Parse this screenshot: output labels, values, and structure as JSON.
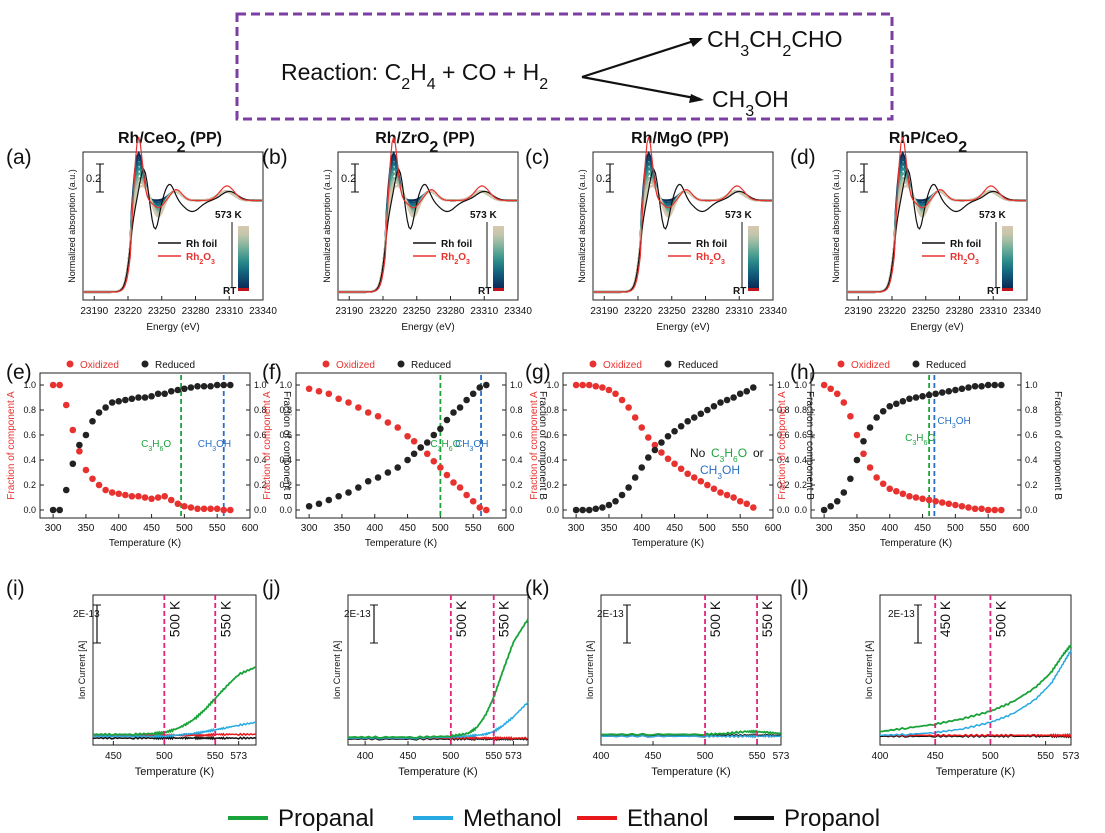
{
  "reaction": {
    "label": "Reaction: ",
    "reactants": [
      "C2H4",
      "CO",
      "H2"
    ],
    "product_1": "CH3CH2CHO",
    "product_2": "CH3OH"
  },
  "colors": {
    "oxidized": "#e8322f",
    "reduced": "#222222",
    "propanal": "#1aa33a",
    "methanol": "#27a9e1",
    "ethanol": "#e8191b",
    "propanol": "#111111",
    "vline_xas": "#1aa33a",
    "vline_meoh": "#2b6fc4",
    "vline_ms": "#e0247a",
    "rh_foil": "#111111",
    "rh2o3": "#e8322f",
    "frame_dash": "#7a3fa0"
  },
  "legend_bottom": [
    "Propanal",
    "Methanol",
    "Ethanol",
    "Propanol"
  ],
  "chart_data": [
    {
      "panel": "(a)",
      "type": "line",
      "title": "Rh/CeO2 (PP)",
      "xlabel": "Energy (eV)",
      "ylabel": "Normalized absorption (a.u.)",
      "xticks": [
        "23190",
        "23220",
        "23250",
        "23280",
        "23310",
        "23340"
      ],
      "xlim": [
        23180,
        23340
      ],
      "scale_bar": "0.2",
      "legend": [
        "Rh foil",
        "Rh2O3"
      ],
      "colorbar_top": "573 K",
      "colorbar_bottom": "RT"
    },
    {
      "panel": "(b)",
      "type": "line",
      "title": "Rh/ZrO2 (PP)",
      "xlabel": "Energy (eV)",
      "ylabel": "Normalized absorption (a.u.)",
      "xticks": [
        "23190",
        "23220",
        "23250",
        "23280",
        "23310",
        "23340"
      ],
      "xlim": [
        23180,
        23340
      ],
      "scale_bar": "0.2",
      "legend": [
        "Rh foil",
        "Rh2O3"
      ],
      "colorbar_top": "573 K",
      "colorbar_bottom": "RT"
    },
    {
      "panel": "(c)",
      "type": "line",
      "title": "Rh/MgO (PP)",
      "xlabel": "Energy (eV)",
      "ylabel": "Normalized absorption (a.u.)",
      "xticks": [
        "23190",
        "23220",
        "23250",
        "23280",
        "23310",
        "23340"
      ],
      "xlim": [
        23180,
        23340
      ],
      "scale_bar": "0.2",
      "legend": [
        "Rh foil",
        "Rh2O3"
      ],
      "colorbar_top": "573 K",
      "colorbar_bottom": "RT"
    },
    {
      "panel": "(d)",
      "type": "line",
      "title": "RhP/CeO2",
      "xlabel": "Energy (eV)",
      "ylabel": "Normalized absorption (a.u.)",
      "xticks": [
        "23190",
        "23220",
        "23250",
        "23280",
        "23310",
        "23340"
      ],
      "xlim": [
        23180,
        23340
      ],
      "scale_bar": "0.2",
      "legend": [
        "Rh foil",
        "Rh2O3"
      ],
      "colorbar_top": "573 K",
      "colorbar_bottom": "RT"
    },
    {
      "panel": "(e)",
      "type": "scatter",
      "xlabel": "Temperature (K)",
      "ylabel_left": "Fraction of component A",
      "ylabel_right": "Fraction of component B",
      "xlim": [
        280,
        600
      ],
      "ylim": [
        0,
        1.0
      ],
      "xticks": [
        300,
        350,
        400,
        450,
        500,
        550,
        600
      ],
      "yticks": [
        0.0,
        0.2,
        0.4,
        0.6,
        0.8,
        1.0
      ],
      "legend": [
        "Oxidized",
        "Reduced"
      ],
      "x": [
        300,
        310,
        320,
        330,
        340,
        350,
        360,
        370,
        380,
        390,
        400,
        410,
        420,
        430,
        440,
        450,
        460,
        470,
        480,
        490,
        500,
        510,
        520,
        530,
        540,
        550,
        560,
        570
      ],
      "series": [
        {
          "name": "Oxidized",
          "values": [
            1.0,
            1.0,
            0.84,
            0.64,
            0.47,
            0.32,
            0.25,
            0.2,
            0.16,
            0.14,
            0.13,
            0.12,
            0.11,
            0.11,
            0.1,
            0.09,
            0.1,
            0.11,
            0.08,
            0.05,
            0.03,
            0.02,
            0.01,
            0.01,
            0.01,
            0.01,
            0.0,
            0.0
          ]
        },
        {
          "name": "Reduced",
          "values": [
            0.0,
            0.0,
            0.16,
            0.37,
            0.52,
            0.6,
            0.71,
            0.78,
            0.82,
            0.86,
            0.87,
            0.88,
            0.89,
            0.9,
            0.9,
            0.91,
            0.93,
            0.93,
            0.95,
            0.96,
            0.97,
            0.98,
            0.99,
            0.99,
            0.99,
            1.0,
            1.0,
            1.0
          ]
        }
      ],
      "vlines": [
        {
          "x": 495,
          "label": "C3H6O",
          "kind": "xas"
        },
        {
          "x": 560,
          "label": "CH3OH",
          "kind": "meoh"
        }
      ]
    },
    {
      "panel": "(f)",
      "type": "scatter",
      "xlabel": "Temperature (K)",
      "ylabel_left": "Fraction of component A",
      "ylabel_right": "Fraction of component B",
      "xlim": [
        280,
        600
      ],
      "ylim": [
        0,
        1.0
      ],
      "xticks": [
        300,
        350,
        400,
        450,
        500,
        550,
        600
      ],
      "yticks": [
        0.0,
        0.2,
        0.4,
        0.6,
        0.8,
        1.0
      ],
      "legend": [
        "Oxidized",
        "Reduced"
      ],
      "x": [
        300,
        315,
        330,
        345,
        360,
        375,
        390,
        405,
        420,
        435,
        450,
        460,
        470,
        480,
        490,
        500,
        510,
        520,
        530,
        540,
        550,
        560,
        570
      ],
      "series": [
        {
          "name": "Oxidized",
          "values": [
            0.97,
            0.95,
            0.93,
            0.89,
            0.86,
            0.82,
            0.78,
            0.75,
            0.7,
            0.66,
            0.59,
            0.55,
            0.5,
            0.45,
            0.39,
            0.34,
            0.28,
            0.22,
            0.18,
            0.12,
            0.07,
            0.02,
            0.0
          ]
        },
        {
          "name": "Reduced",
          "values": [
            0.03,
            0.05,
            0.08,
            0.11,
            0.14,
            0.18,
            0.23,
            0.26,
            0.3,
            0.34,
            0.4,
            0.45,
            0.5,
            0.54,
            0.6,
            0.65,
            0.72,
            0.78,
            0.82,
            0.88,
            0.93,
            0.98,
            1.0
          ]
        }
      ],
      "vlines": [
        {
          "x": 500,
          "label": "C3H6O",
          "kind": "xas"
        },
        {
          "x": 562,
          "label": "CH3OH",
          "kind": "meoh"
        }
      ]
    },
    {
      "panel": "(g)",
      "type": "scatter",
      "xlabel": "Temperature (K)",
      "ylabel_left": "Fraction of component A",
      "ylabel_right": "Fraction of component B",
      "xlim": [
        280,
        600
      ],
      "ylim": [
        0,
        1.0
      ],
      "xticks": [
        300,
        350,
        400,
        450,
        500,
        550,
        600
      ],
      "yticks": [
        0.0,
        0.2,
        0.4,
        0.6,
        0.8,
        1.0
      ],
      "legend": [
        "Oxidized",
        "Reduced"
      ],
      "x": [
        300,
        310,
        320,
        330,
        340,
        350,
        360,
        370,
        380,
        390,
        400,
        410,
        420,
        430,
        440,
        450,
        460,
        470,
        480,
        490,
        500,
        510,
        520,
        530,
        540,
        550,
        560,
        570
      ],
      "series": [
        {
          "name": "Oxidized",
          "values": [
            1.0,
            1.0,
            1.0,
            0.99,
            0.98,
            0.96,
            0.93,
            0.88,
            0.82,
            0.74,
            0.66,
            0.58,
            0.52,
            0.46,
            0.41,
            0.37,
            0.33,
            0.29,
            0.26,
            0.23,
            0.2,
            0.17,
            0.14,
            0.12,
            0.1,
            0.07,
            0.05,
            0.02
          ]
        },
        {
          "name": "Reduced",
          "values": [
            0.0,
            0.0,
            0.0,
            0.01,
            0.02,
            0.04,
            0.07,
            0.12,
            0.18,
            0.26,
            0.34,
            0.42,
            0.48,
            0.54,
            0.59,
            0.63,
            0.67,
            0.71,
            0.74,
            0.77,
            0.8,
            0.83,
            0.86,
            0.88,
            0.9,
            0.93,
            0.95,
            0.98
          ]
        }
      ],
      "annotation": [
        "No ",
        "C3H6O",
        " or",
        "CH3OH"
      ]
    },
    {
      "panel": "(h)",
      "type": "scatter",
      "xlabel": "Temperature (K)",
      "ylabel_left": "Fraction of component A",
      "ylabel_right": "Fraction of component B",
      "xlim": [
        280,
        600
      ],
      "ylim": [
        0,
        1.0
      ],
      "xticks": [
        300,
        350,
        400,
        450,
        500,
        550,
        600
      ],
      "yticks": [
        0.0,
        0.2,
        0.4,
        0.6,
        0.8,
        1.0
      ],
      "legend": [
        "Oxidized",
        "Reduced"
      ],
      "x": [
        300,
        310,
        320,
        330,
        340,
        350,
        360,
        370,
        380,
        390,
        400,
        410,
        420,
        430,
        440,
        450,
        460,
        470,
        480,
        490,
        500,
        510,
        520,
        530,
        540,
        550,
        560,
        570
      ],
      "series": [
        {
          "name": "Oxidized",
          "values": [
            1.0,
            0.97,
            0.93,
            0.86,
            0.75,
            0.6,
            0.45,
            0.34,
            0.26,
            0.21,
            0.17,
            0.15,
            0.13,
            0.11,
            0.1,
            0.09,
            0.08,
            0.07,
            0.06,
            0.05,
            0.04,
            0.03,
            0.02,
            0.01,
            0.01,
            0.0,
            0.0,
            0.0
          ]
        },
        {
          "name": "Reduced",
          "values": [
            0.0,
            0.03,
            0.07,
            0.14,
            0.25,
            0.4,
            0.55,
            0.66,
            0.74,
            0.79,
            0.83,
            0.85,
            0.87,
            0.89,
            0.9,
            0.91,
            0.92,
            0.93,
            0.94,
            0.95,
            0.96,
            0.97,
            0.98,
            0.99,
            0.99,
            1.0,
            1.0,
            1.0
          ]
        }
      ],
      "vlines": [
        {
          "x": 460,
          "label": "C3H6O",
          "kind": "xas"
        },
        {
          "x": 468,
          "label": "CH3OH",
          "kind": "meoh"
        }
      ]
    },
    {
      "panel": "(i)",
      "type": "line",
      "xlabel": "Temperature (K)",
      "ylabel": "Ion Current [A]",
      "scale_bar": "2E-13",
      "xlim": [
        430,
        590
      ],
      "xticks": [
        450,
        500,
        550,
        573
      ],
      "vlines": [
        {
          "x": 500,
          "label": "500 K"
        },
        {
          "x": 550,
          "label": "550 K"
        }
      ],
      "x": [
        430,
        450,
        470,
        490,
        500,
        510,
        520,
        530,
        540,
        550,
        560,
        573,
        590
      ],
      "series": [
        {
          "name": "Propanal",
          "values": [
            0.05,
            0.05,
            0.05,
            0.06,
            0.07,
            0.1,
            0.15,
            0.22,
            0.32,
            0.44,
            0.56,
            0.7,
            0.78
          ]
        },
        {
          "name": "Methanol",
          "values": [
            0.03,
            0.03,
            0.03,
            0.03,
            0.03,
            0.04,
            0.05,
            0.06,
            0.08,
            0.1,
            0.12,
            0.15,
            0.18
          ]
        },
        {
          "name": "Ethanol",
          "values": [
            0.04,
            0.04,
            0.04,
            0.04,
            0.04,
            0.04,
            0.04,
            0.04,
            0.04,
            0.05,
            0.05,
            0.05,
            0.05
          ]
        },
        {
          "name": "Propanol",
          "values": [
            0.01,
            0.01,
            0.01,
            0.01,
            0.01,
            0.01,
            0.01,
            0.01,
            0.01,
            0.01,
            0.01,
            0.01,
            0.01
          ]
        }
      ]
    },
    {
      "panel": "(j)",
      "type": "line",
      "xlabel": "Temperature (K)",
      "ylabel": "Ion Current [A]",
      "scale_bar": "2E-13",
      "xlim": [
        380,
        590
      ],
      "xticks": [
        400,
        450,
        500,
        550,
        573
      ],
      "vlines": [
        {
          "x": 500,
          "label": "500 K"
        },
        {
          "x": 550,
          "label": "550 K"
        }
      ],
      "x": [
        380,
        420,
        460,
        500,
        520,
        530,
        540,
        550,
        560,
        573,
        590
      ],
      "series": [
        {
          "name": "Propanal",
          "values": [
            0.02,
            0.02,
            0.02,
            0.03,
            0.06,
            0.12,
            0.25,
            0.45,
            0.72,
            1.05,
            1.3
          ]
        },
        {
          "name": "Methanol",
          "values": [
            0.01,
            0.01,
            0.01,
            0.02,
            0.03,
            0.04,
            0.05,
            0.08,
            0.14,
            0.24,
            0.4
          ]
        },
        {
          "name": "Ethanol",
          "values": [
            0.01,
            0.01,
            0.01,
            0.01,
            0.01,
            0.01,
            0.01,
            0.01,
            0.01,
            0.01,
            0.01
          ]
        },
        {
          "name": "Propanol",
          "values": [
            0.0,
            0.0,
            0.0,
            0.0,
            0.0,
            0.0,
            0.0,
            0.0,
            0.0,
            0.0,
            0.0
          ]
        }
      ]
    },
    {
      "panel": "(k)",
      "type": "line",
      "xlabel": "Temperature (K)",
      "ylabel": "Ion Current [A]",
      "scale_bar": "2E-13",
      "xlim": [
        400,
        573
      ],
      "xticks": [
        400,
        450,
        500,
        550,
        573
      ],
      "vlines": [
        {
          "x": 500,
          "label": "500 K"
        },
        {
          "x": 550,
          "label": "550 K"
        }
      ],
      "x": [
        400,
        450,
        500,
        520,
        540,
        550,
        560,
        573
      ],
      "series": [
        {
          "name": "Propanal",
          "values": [
            0.05,
            0.05,
            0.05,
            0.06,
            0.08,
            0.08,
            0.07,
            0.06
          ]
        },
        {
          "name": "Methanol",
          "values": [
            0.03,
            0.03,
            0.03,
            0.03,
            0.03,
            0.03,
            0.03,
            0.03
          ]
        },
        {
          "name": "Ethanol",
          "values": [
            0.03,
            0.03,
            0.03,
            0.03,
            0.03,
            0.03,
            0.03,
            0.03
          ]
        },
        {
          "name": "Propanol",
          "values": [
            0.04,
            0.04,
            0.04,
            0.04,
            0.04,
            0.04,
            0.04,
            0.04
          ]
        }
      ]
    },
    {
      "panel": "(l)",
      "type": "line",
      "xlabel": "Temperature (K)",
      "ylabel": "Ion Current [A]",
      "scale_bar": "2E-13",
      "xlim": [
        400,
        573
      ],
      "xticks": [
        400,
        450,
        500,
        550,
        573
      ],
      "vlines": [
        {
          "x": 450,
          "label": "450 K"
        },
        {
          "x": 500,
          "label": "500 K"
        }
      ],
      "x": [
        400,
        425,
        450,
        475,
        500,
        520,
        540,
        555,
        565,
        573
      ],
      "series": [
        {
          "name": "Propanal",
          "values": [
            0.08,
            0.12,
            0.16,
            0.22,
            0.3,
            0.4,
            0.55,
            0.72,
            0.9,
            1.02
          ]
        },
        {
          "name": "Methanol",
          "values": [
            0.04,
            0.05,
            0.07,
            0.11,
            0.18,
            0.27,
            0.42,
            0.6,
            0.8,
            0.96
          ]
        },
        {
          "name": "Ethanol",
          "values": [
            0.04,
            0.04,
            0.04,
            0.04,
            0.04,
            0.04,
            0.04,
            0.04,
            0.04,
            0.04
          ]
        },
        {
          "name": "Propanol",
          "values": [
            0.03,
            0.03,
            0.03,
            0.03,
            0.03,
            0.03,
            0.03,
            0.03,
            0.03,
            0.03
          ]
        }
      ]
    }
  ]
}
